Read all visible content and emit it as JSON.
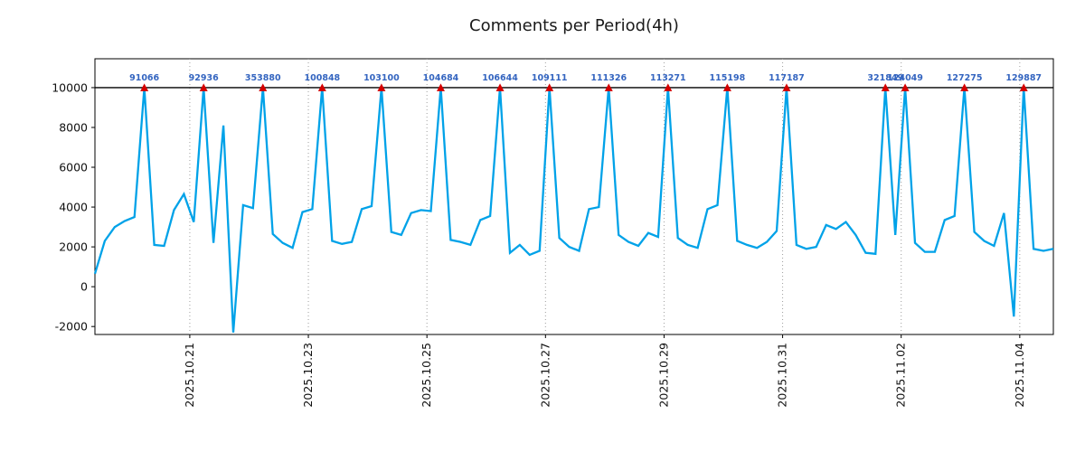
{
  "page": {
    "title": "Comments per Period(4h)"
  },
  "chart_data": {
    "type": "line",
    "title": "Comments per Period(4h)",
    "xlabel": "",
    "ylabel": "",
    "legend": "none",
    "grid": {
      "vertical": "dotted",
      "horizontal": "none"
    },
    "period_hours": 4,
    "points_per_day": 6,
    "cap_value": 10000,
    "ylim": [
      -2400,
      11450
    ],
    "y_ticks": [
      10000,
      8000,
      6000,
      4000,
      2000,
      0,
      -2000
    ],
    "x_ticks": [
      {
        "label": "2025.10.21",
        "day_offset": 1.6
      },
      {
        "label": "2025.10.23",
        "day_offset": 3.6
      },
      {
        "label": "2025.10.25",
        "day_offset": 5.6
      },
      {
        "label": "2025.10.27",
        "day_offset": 7.6
      },
      {
        "label": "2025.10.29",
        "day_offset": 9.6
      },
      {
        "label": "2025.10.31",
        "day_offset": 11.6
      },
      {
        "label": "2025.11.02",
        "day_offset": 13.6
      },
      {
        "label": "2025.11.04",
        "day_offset": 15.6
      }
    ],
    "values": [
      650,
      2300,
      3000,
      3300,
      3500,
      10000,
      2100,
      2050,
      3850,
      4650,
      3250,
      10000,
      2200,
      8100,
      -2300,
      4100,
      3950,
      10000,
      2650,
      2200,
      1950,
      3750,
      3900,
      10000,
      2300,
      2150,
      2250,
      3900,
      4050,
      10000,
      2750,
      2600,
      3700,
      3850,
      3800,
      10000,
      2350,
      2250,
      2100,
      3350,
      3550,
      10000,
      1700,
      2100,
      1600,
      1800,
      10000,
      2450,
      2000,
      1800,
      3900,
      4000,
      10000,
      2600,
      2250,
      2050,
      2700,
      2500,
      10000,
      2450,
      2100,
      1950,
      3900,
      4100,
      10000,
      2300,
      2100,
      1950,
      2250,
      2800,
      10000,
      2100,
      1900,
      2000,
      3100,
      2900,
      3250,
      2600,
      1700,
      1650,
      10000,
      2600,
      10000,
      2200,
      1750,
      1750,
      3350,
      3550,
      10000,
      2750,
      2300,
      2050,
      3700,
      -1500,
      10000,
      1900,
      1800,
      1900
    ],
    "peaks": [
      {
        "i": 5,
        "label": "91066"
      },
      {
        "i": 11,
        "label": "92936"
      },
      {
        "i": 17,
        "label": "353880"
      },
      {
        "i": 23,
        "label": "100848"
      },
      {
        "i": 29,
        "label": "103100"
      },
      {
        "i": 35,
        "label": "104684"
      },
      {
        "i": 41,
        "label": "106644"
      },
      {
        "i": 46,
        "label": "109111"
      },
      {
        "i": 52,
        "label": "111326"
      },
      {
        "i": 58,
        "label": "113271"
      },
      {
        "i": 64,
        "label": "115198"
      },
      {
        "i": 70,
        "label": "117187"
      },
      {
        "i": 80,
        "label": "321849"
      },
      {
        "i": 82,
        "label": "124049"
      },
      {
        "i": 88,
        "label": "127275"
      },
      {
        "i": 94,
        "label": "129887"
      }
    ],
    "colors": {
      "series": "#00a2e8",
      "peak_marker": "#d40000",
      "peak_label": "#3465c0",
      "grid": "#9e9e9e",
      "axis": "#000000",
      "tick_text": "#111111"
    }
  }
}
